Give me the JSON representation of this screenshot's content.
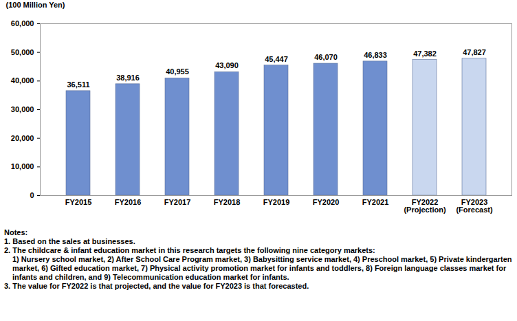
{
  "chart_data": {
    "type": "bar",
    "y_label": "(100 Million Yen)",
    "categories": [
      "FY2015",
      "FY2016",
      "FY2017",
      "FY2018",
      "FY2019",
      "FY2020",
      "FY2021",
      "FY2022\n(Projection)",
      "FY2023\n(Forecast)"
    ],
    "values": [
      36511,
      38916,
      40955,
      43090,
      45447,
      46070,
      46833,
      47382,
      47827
    ],
    "value_labels": [
      "36,511",
      "38,916",
      "40,955",
      "43,090",
      "45,447",
      "46,070",
      "46,833",
      "47,382",
      "47,827"
    ],
    "data_labels": true,
    "colors": [
      "#6f8fcf",
      "#6f8fcf",
      "#6f8fcf",
      "#6f8fcf",
      "#6f8fcf",
      "#6f8fcf",
      "#6f8fcf",
      "#c9d7ef",
      "#c9d7ef"
    ],
    "ylim": [
      0,
      60000
    ],
    "yticks": [
      0,
      {
        "value": 10000,
        "label": "10,000"
      },
      {
        "value": 20000,
        "label": "20,000"
      },
      {
        "value": 30000,
        "label": "30,000"
      },
      {
        "value": 40000,
        "label": "40,000"
      },
      {
        "value": 50000,
        "label": "50,000"
      },
      {
        "value": 60000,
        "label": "60,000"
      }
    ],
    "grid": false,
    "notes": [
      "Notes:",
      "1. Based on the sales at businesses.",
      "2. The childcare & infant education market in this research targets the following nine category markets:",
      "1) Nursery school market, 2) After School Care Program market, 3) Babysitting service market, 4) Preschool market, 5) Private kindergarten market, 6) Gifted education market, 7) Physical activity promotion market for infants and toddlers, 8) Foreign language classes market for infants and children, and 9) Telecommunication education market for infants.",
      "3. The value for FY2022 is that projected, and the value for FY2023 is that forecasted."
    ]
  }
}
